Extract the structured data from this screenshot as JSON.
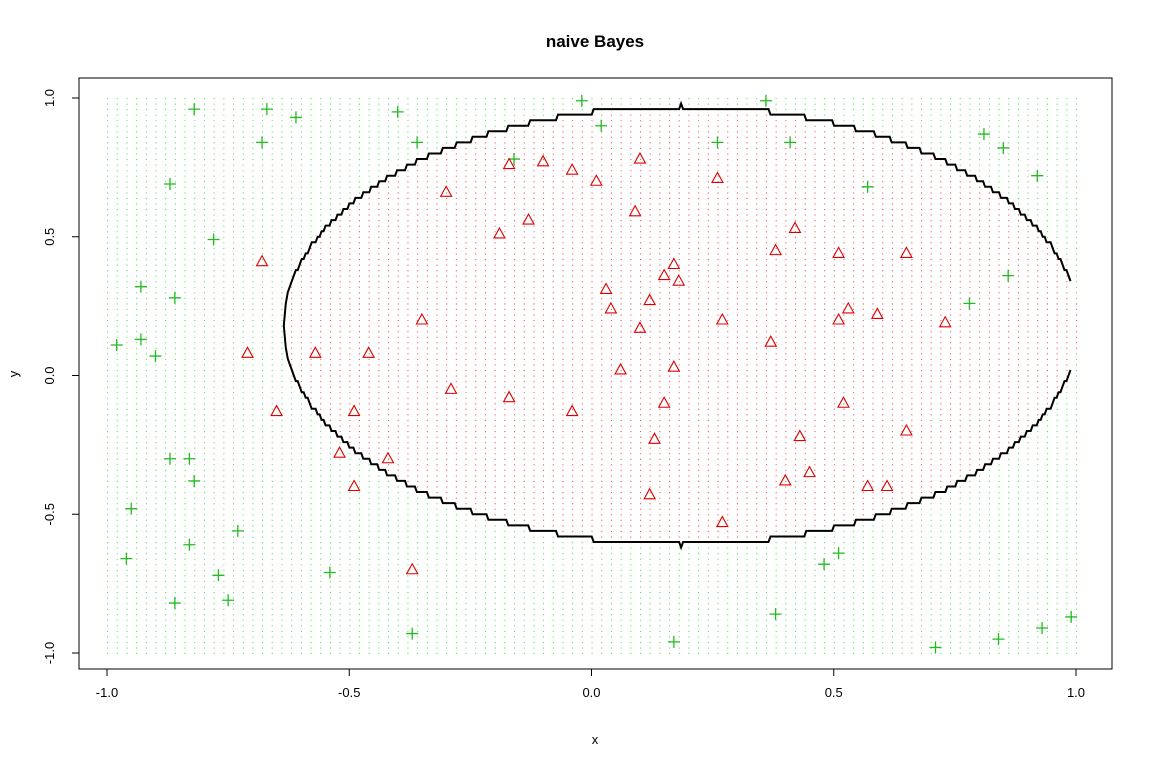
{
  "chart_data": {
    "type": "scatter",
    "title": "naive Bayes",
    "xlabel": "x",
    "ylabel": "y",
    "xlim": [
      -1.0,
      1.0
    ],
    "ylim": [
      -1.0,
      1.0
    ],
    "x_ticks": [
      "-1.0",
      "-0.5",
      "0.0",
      "0.5",
      "1.0"
    ],
    "y_ticks": [
      "-1.0",
      "-0.5",
      "0.0",
      "0.5",
      "1.0"
    ],
    "colors": {
      "class_plus": "#22bb22",
      "class_triangle": "#dd0000",
      "boundary": "#000000",
      "grid_plus": "#33cc33",
      "grid_triangle": "#ee2222"
    },
    "decision_region": {
      "description_shape": "ellipse",
      "center": [
        0.185,
        0.18
      ],
      "radii": [
        0.82,
        0.79
      ],
      "inside_class": "triangle",
      "outside_class": "plus"
    },
    "series": [
      {
        "marker": "plus",
        "points": [
          [
            -0.98,
            0.11
          ],
          [
            -0.96,
            -0.66
          ],
          [
            -0.95,
            -0.48
          ],
          [
            -0.93,
            0.32
          ],
          [
            -0.93,
            0.13
          ],
          [
            -0.9,
            0.07
          ],
          [
            -0.87,
            0.69
          ],
          [
            -0.86,
            0.28
          ],
          [
            -0.87,
            -0.3
          ],
          [
            -0.86,
            -0.82
          ],
          [
            -0.83,
            -0.3
          ],
          [
            -0.83,
            -0.61
          ],
          [
            -0.82,
            0.96
          ],
          [
            -0.82,
            -0.38
          ],
          [
            -0.78,
            0.49
          ],
          [
            -0.77,
            -0.72
          ],
          [
            -0.75,
            -0.81
          ],
          [
            -0.73,
            -0.56
          ],
          [
            -0.67,
            0.96
          ],
          [
            -0.68,
            0.84
          ],
          [
            -0.61,
            0.93
          ],
          [
            -0.54,
            -0.71
          ],
          [
            -0.4,
            0.95
          ],
          [
            -0.36,
            0.84
          ],
          [
            -0.37,
            -0.93
          ],
          [
            -0.16,
            0.78
          ],
          [
            -0.02,
            0.99
          ],
          [
            0.02,
            0.9
          ],
          [
            0.17,
            -0.96
          ],
          [
            0.26,
            0.84
          ],
          [
            0.36,
            0.99
          ],
          [
            0.38,
            -0.86
          ],
          [
            0.41,
            0.84
          ],
          [
            0.48,
            -0.68
          ],
          [
            0.51,
            -0.64
          ],
          [
            0.57,
            0.68
          ],
          [
            0.71,
            -0.98
          ],
          [
            0.78,
            0.26
          ],
          [
            0.81,
            0.87
          ],
          [
            0.84,
            -0.95
          ],
          [
            0.85,
            0.82
          ],
          [
            0.86,
            0.36
          ],
          [
            0.92,
            0.72
          ],
          [
            0.93,
            -0.91
          ],
          [
            0.99,
            -0.87
          ]
        ]
      },
      {
        "marker": "triangle",
        "points": [
          [
            -0.68,
            0.41
          ],
          [
            -0.71,
            0.08
          ],
          [
            -0.65,
            -0.13
          ],
          [
            -0.57,
            0.08
          ],
          [
            -0.52,
            -0.28
          ],
          [
            -0.49,
            -0.13
          ],
          [
            -0.49,
            -0.4
          ],
          [
            -0.46,
            0.08
          ],
          [
            -0.42,
            -0.3
          ],
          [
            -0.37,
            -0.7
          ],
          [
            -0.35,
            0.2
          ],
          [
            -0.3,
            0.66
          ],
          [
            -0.29,
            -0.05
          ],
          [
            -0.19,
            0.51
          ],
          [
            -0.17,
            0.76
          ],
          [
            -0.17,
            -0.08
          ],
          [
            -0.13,
            0.56
          ],
          [
            -0.1,
            0.77
          ],
          [
            -0.04,
            0.74
          ],
          [
            -0.04,
            -0.13
          ],
          [
            0.01,
            0.7
          ],
          [
            0.03,
            0.31
          ],
          [
            0.04,
            0.24
          ],
          [
            0.06,
            0.02
          ],
          [
            0.09,
            0.59
          ],
          [
            0.1,
            0.78
          ],
          [
            0.1,
            0.17
          ],
          [
            0.12,
            0.27
          ],
          [
            0.12,
            -0.43
          ],
          [
            0.13,
            -0.23
          ],
          [
            0.15,
            0.36
          ],
          [
            0.15,
            -0.1
          ],
          [
            0.17,
            0.4
          ],
          [
            0.17,
            0.03
          ],
          [
            0.18,
            0.34
          ],
          [
            0.26,
            0.71
          ],
          [
            0.27,
            0.2
          ],
          [
            0.27,
            -0.53
          ],
          [
            0.37,
            0.12
          ],
          [
            0.38,
            0.45
          ],
          [
            0.4,
            -0.38
          ],
          [
            0.42,
            0.53
          ],
          [
            0.43,
            -0.22
          ],
          [
            0.45,
            -0.35
          ],
          [
            0.51,
            0.44
          ],
          [
            0.51,
            0.2
          ],
          [
            0.52,
            -0.1
          ],
          [
            0.53,
            0.24
          ],
          [
            0.57,
            -0.4
          ],
          [
            0.59,
            0.22
          ],
          [
            0.61,
            -0.4
          ],
          [
            0.65,
            0.44
          ],
          [
            0.65,
            -0.2
          ],
          [
            0.73,
            0.19
          ]
        ]
      }
    ]
  }
}
